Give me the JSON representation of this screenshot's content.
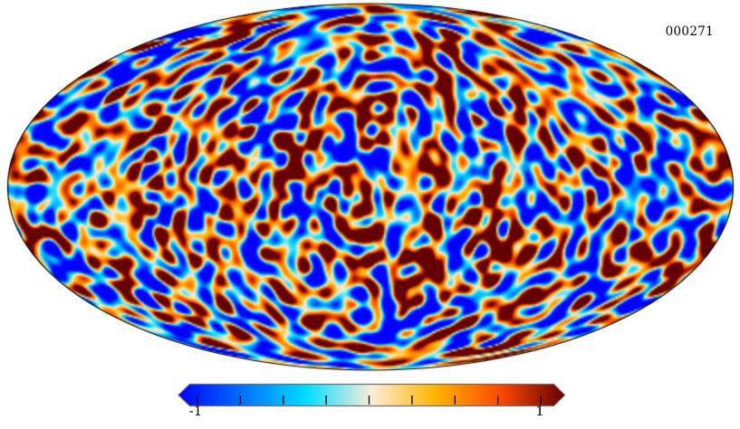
{
  "figure": {
    "id_label": "000271",
    "background_color": "#ffffff",
    "outline_color": "#000000"
  },
  "colorbar": {
    "min_label": "-1",
    "max_label": "1",
    "border_color": "#6e6e6e",
    "tick_color": "#000000"
  },
  "chart_data": {
    "type": "heatmap",
    "projection": "mollweide",
    "title": "000271",
    "description": "Full-sky Mollweide-projection map of a simulated Gaussian random field (CMB-like temperature fluctuations), shown with a Planck-style diverging colormap and a colorbar with triangular over/under extensions.",
    "value_range": [
      -1,
      1
    ],
    "colorbar_ticks": [
      -1,
      -0.75,
      -0.5,
      -0.25,
      0,
      0.25,
      0.5,
      0.75,
      1
    ],
    "colorbar_tick_labels_shown": [
      "-1",
      "1"
    ],
    "colorbar_extend": "both",
    "grid": false,
    "legend": false,
    "colormap": {
      "name": "planck",
      "stops": [
        {
          "pos": 0.0,
          "color": "#0000ff"
        },
        {
          "pos": 0.165,
          "color": "#0070ff"
        },
        {
          "pos": 0.33,
          "color": "#00ddff"
        },
        {
          "pos": 0.5,
          "color": "#ffedd9"
        },
        {
          "pos": 0.665,
          "color": "#ffb400"
        },
        {
          "pos": 0.83,
          "color": "#ff4b00"
        },
        {
          "pos": 1.0,
          "color": "#640000"
        }
      ]
    },
    "field_simulation": {
      "seed": 271,
      "high_band": {
        "count": 64,
        "freq_min": 27,
        "freq_max": 45,
        "amplitude": 1.0
      },
      "low_band": {
        "count": 24,
        "freq_min": 7,
        "freq_max": 17,
        "amplitude": 0.62
      },
      "color_scale": 0.48
    }
  }
}
